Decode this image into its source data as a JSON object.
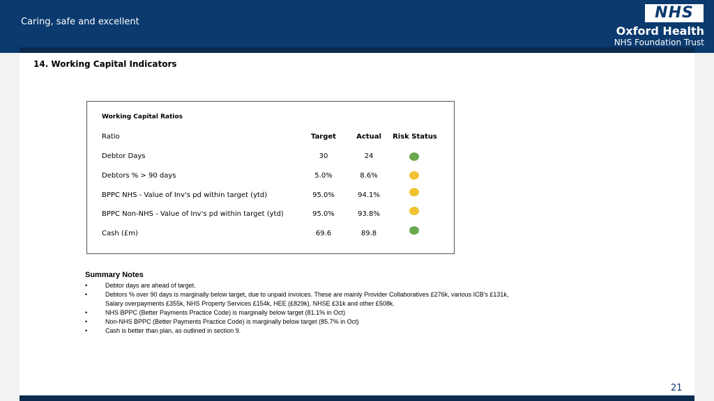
{
  "header": {
    "tagline": "Caring, safe and excellent",
    "logo_text": "NHS",
    "org_name": "Oxford Health",
    "org_sub": "NHS Foundation Trust",
    "color": "#0a3a6e"
  },
  "page_title": "14. Working Capital Indicators",
  "table": {
    "caption": "Working Capital Ratios",
    "headers": {
      "ratio": "Ratio",
      "target": "Target",
      "actual": "Actual",
      "risk": "Risk Status"
    },
    "rows": [
      {
        "ratio": "Debtor Days",
        "target": "30",
        "actual": "24",
        "risk": "green",
        "risk_color": "#6aa84f"
      },
      {
        "ratio": "Debtors % > 90 days",
        "target": "5.0%",
        "actual": "8.6%",
        "risk": "amber",
        "risk_color": "#f1c232"
      },
      {
        "ratio": "BPPC NHS - Value of Inv's pd within target (ytd)",
        "target": "95.0%",
        "actual": "94.1%",
        "risk": "amber",
        "risk_color": "#f1c232"
      },
      {
        "ratio": "BPPC Non-NHS - Value of Inv's pd within target (ytd)",
        "target": "95.0%",
        "actual": "93.8%",
        "risk": "amber",
        "risk_color": "#f1c232"
      },
      {
        "ratio": "Cash (£m)",
        "target": "69.6",
        "actual": "89.8",
        "risk": "green",
        "risk_color": "#6aa84f"
      }
    ]
  },
  "summary": {
    "title": "Summary Notes",
    "bullet": "•",
    "notes": [
      {
        "lines": [
          "Debtor days are ahead of target."
        ]
      },
      {
        "lines": [
          "Debtors % over 90 days is marginally below target, due to unpaid invoices. These are mainly Provider Collaboratives £276k, various ICB's £131k,",
          "Salary overpayments £355k, NHS Property Services £154k, HEE (£829k), NHSE £31k and other £508k."
        ]
      },
      {
        "lines": [
          "NHS BPPC (Better Payments Practice Code) is marginally below target (81.1% in Oct)"
        ]
      },
      {
        "lines": [
          "Non-NHS BPPC (Better Payments Practice Code) is marginally below target (85.7% in Oct)"
        ]
      },
      {
        "lines": [
          "Cash is better than plan, as outlined in section 9."
        ]
      }
    ]
  },
  "page_number": "21"
}
